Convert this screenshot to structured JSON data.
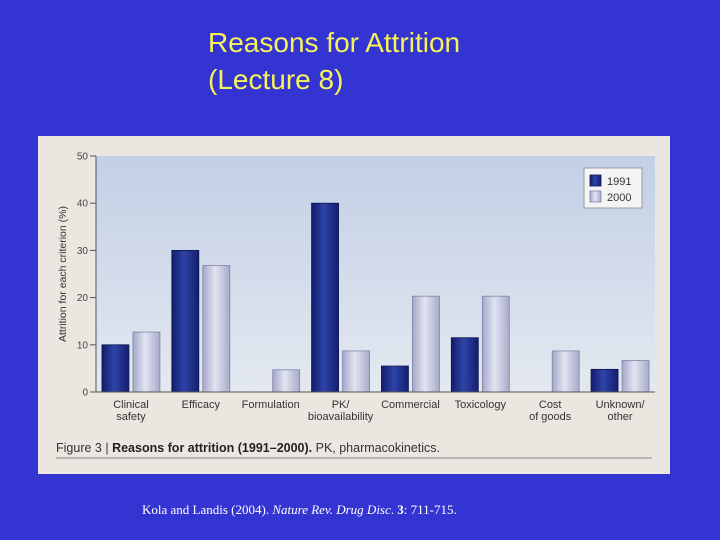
{
  "slide": {
    "title_line1": "Reasons for Attrition",
    "title_line2": "(Lecture 8)",
    "citation": {
      "authors": "Kola and Landis (2004). ",
      "journal": "Nature Rev. Drug Disc",
      "sep": ". ",
      "volume": "3",
      "pages": ":  711-715."
    }
  },
  "colors": {
    "background": "#3434d2",
    "title": "#f6f25a",
    "series_1991": "#1e2f8a",
    "series_2000": "#c4c8e0"
  },
  "chart_data": {
    "type": "bar",
    "categories": [
      [
        "Clinical",
        "safety"
      ],
      [
        "Efficacy"
      ],
      [
        "Formulation"
      ],
      [
        "PK/",
        "bioavailability"
      ],
      [
        "Commercial"
      ],
      [
        "Toxicology"
      ],
      [
        "Cost",
        "of goods"
      ],
      [
        "Unknown/",
        "other"
      ]
    ],
    "series": [
      {
        "name": "1991",
        "values": [
          10,
          30,
          null,
          40,
          5.5,
          11.5,
          null,
          4.8
        ],
        "color": "#1e2f8a"
      },
      {
        "name": "2000",
        "values": [
          12.7,
          26.8,
          4.7,
          8.7,
          20.3,
          20.3,
          8.7,
          6.7
        ],
        "color": "#c4c8e0"
      }
    ],
    "ylabel": "Attrition for each criterion (%)",
    "ylim": [
      0,
      50
    ],
    "yticks": [
      0,
      10,
      20,
      30,
      40,
      50
    ],
    "legend_position": "top-right",
    "caption_prefix": "Figure 3 | ",
    "caption_bold": "Reasons for attrition (1991–2000).",
    "caption_rest": " PK, pharmacokinetics."
  }
}
